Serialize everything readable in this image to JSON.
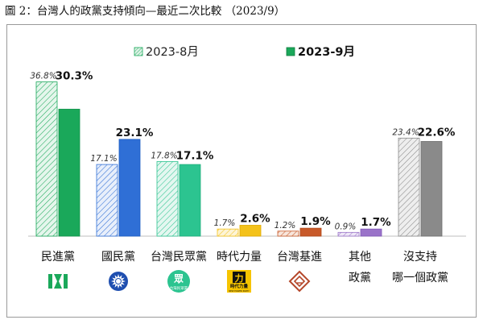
{
  "caption": "圖 2：台灣人的政黨支持傾向—最近二次比較 （2023/9）",
  "chart_data": {
    "type": "bar",
    "title": "",
    "xlabel": "",
    "ylabel": "",
    "ylim": [
      0,
      45
    ],
    "grid": false,
    "legend_position": "top-center",
    "categories": [
      "民進黨",
      "國民黨",
      "台灣民眾黨",
      "時代力量",
      "台灣基進",
      "其他\n政黨",
      "沒支持\n哪一個政黨"
    ],
    "series": [
      {
        "name": "2023-8月",
        "values": [
          36.8,
          17.1,
          17.8,
          1.7,
          1.2,
          0.9,
          23.4
        ],
        "labels": [
          "36.8%",
          "17.1%",
          "17.8%",
          "1.7%",
          "1.2%",
          "0.9%",
          "23.4%"
        ]
      },
      {
        "name": "2023-9月",
        "values": [
          30.3,
          23.1,
          17.1,
          2.6,
          1.9,
          1.7,
          22.6
        ],
        "labels": [
          "30.3%",
          "23.1%",
          "17.1%",
          "2.6%",
          "1.9%",
          "1.7%",
          "22.6%"
        ]
      }
    ],
    "colors": {
      "dpp": "#1aa85a",
      "kmt": "#2f6fd6",
      "tpp": "#2cc490",
      "npp": "#f4c21a",
      "tsp": "#c85a2a",
      "other": "#9a73c9",
      "none": "#8a8a8a"
    },
    "party_icons": [
      "dpp-logo-icon",
      "kmt-logo-icon",
      "tpp-logo-icon",
      "npp-logo-icon",
      "tsp-logo-icon",
      "",
      ""
    ],
    "icon_text": {
      "tpp_mark": "眾",
      "tpp_sub": "台灣民眾黨",
      "npp_mark": "力",
      "npp_sub": "時代力量",
      "npp_en": "NEW POWER PARTY"
    }
  }
}
